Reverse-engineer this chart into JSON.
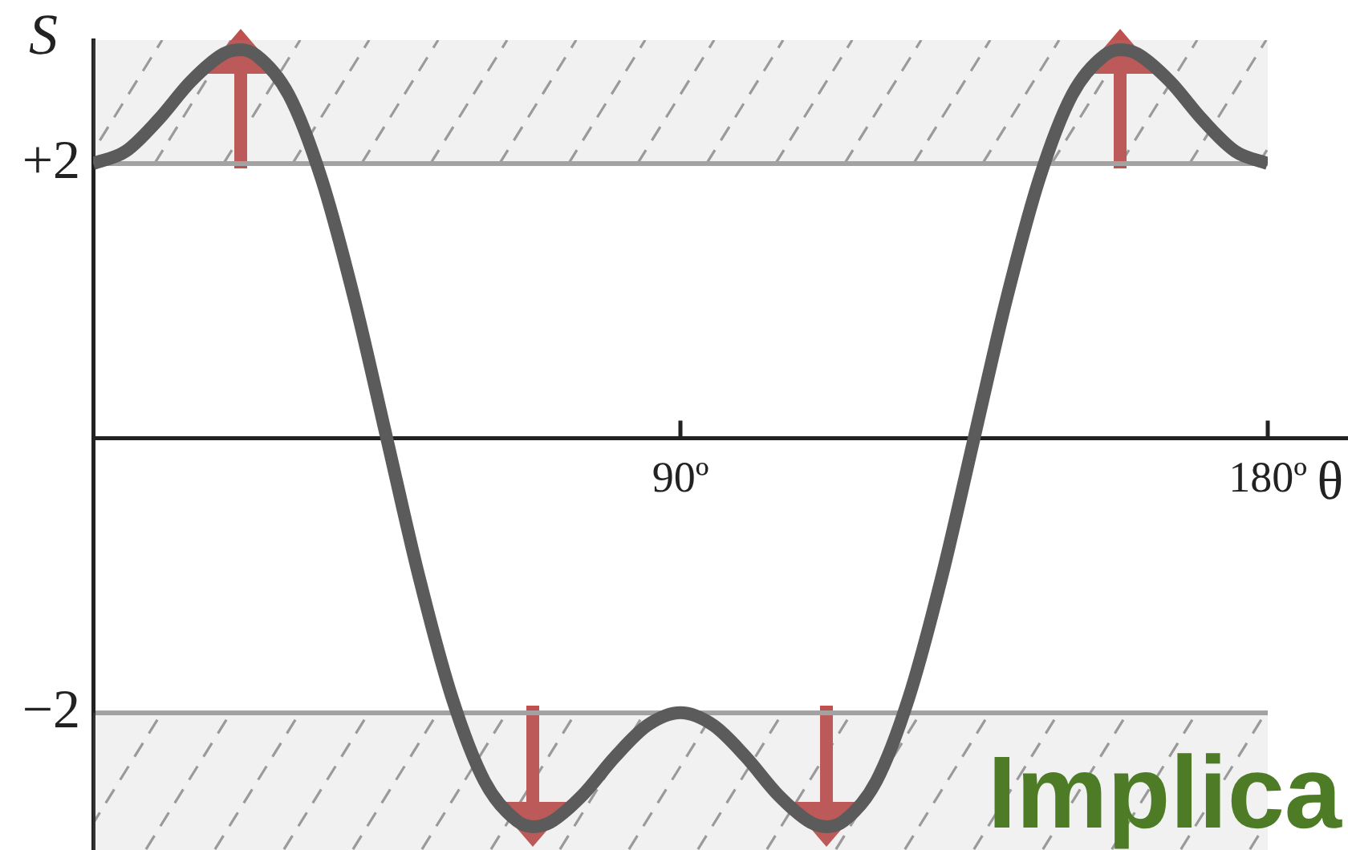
{
  "chart_data": {
    "type": "line",
    "xlabel": "θ",
    "ylabel": "S",
    "x": [
      0,
      5,
      10,
      15,
      20,
      22.5,
      25,
      30,
      35,
      40,
      45,
      50,
      55,
      60,
      65,
      67.5,
      70,
      75,
      80,
      85,
      90,
      95,
      100,
      105,
      110,
      112.5,
      115,
      120,
      125,
      130,
      135,
      140,
      145,
      150,
      155,
      157.5,
      160,
      165,
      170,
      175,
      180
    ],
    "series": [
      {
        "color": "#5b5b5b",
        "values": [
          2,
          2.09,
          2.32,
          2.6,
          2.8,
          2.83,
          2.79,
          2.5,
          1.89,
          1.02,
          0,
          -1.02,
          -1.89,
          -2.5,
          -2.79,
          -2.83,
          -2.8,
          -2.6,
          -2.32,
          -2.09,
          -2,
          -2.09,
          -2.32,
          -2.6,
          -2.8,
          -2.83,
          -2.79,
          -2.5,
          -1.89,
          -1.02,
          0,
          1.02,
          1.89,
          2.5,
          2.79,
          2.83,
          2.8,
          2.6,
          2.32,
          2.09,
          2
        ]
      }
    ],
    "xlim": [
      0,
      180
    ],
    "ylim": [
      -3,
      2.9
    ],
    "xticks": [
      {
        "value": 90,
        "label": "90º"
      },
      {
        "value": 180,
        "label": "180º"
      }
    ],
    "yticks": [
      {
        "value": 2,
        "label": "+2"
      },
      {
        "value": -2,
        "label": "−2"
      }
    ],
    "grid": "y",
    "marker": "none",
    "line_style": "solid",
    "bands": [
      {
        "axis": "y",
        "from": 2,
        "to": 2.9,
        "color": "#9a9a9a"
      },
      {
        "axis": "y",
        "from": -3,
        "to": -2,
        "color": "#9a9a9a"
      }
    ],
    "annotations": [
      "Implica"
    ]
  }
}
